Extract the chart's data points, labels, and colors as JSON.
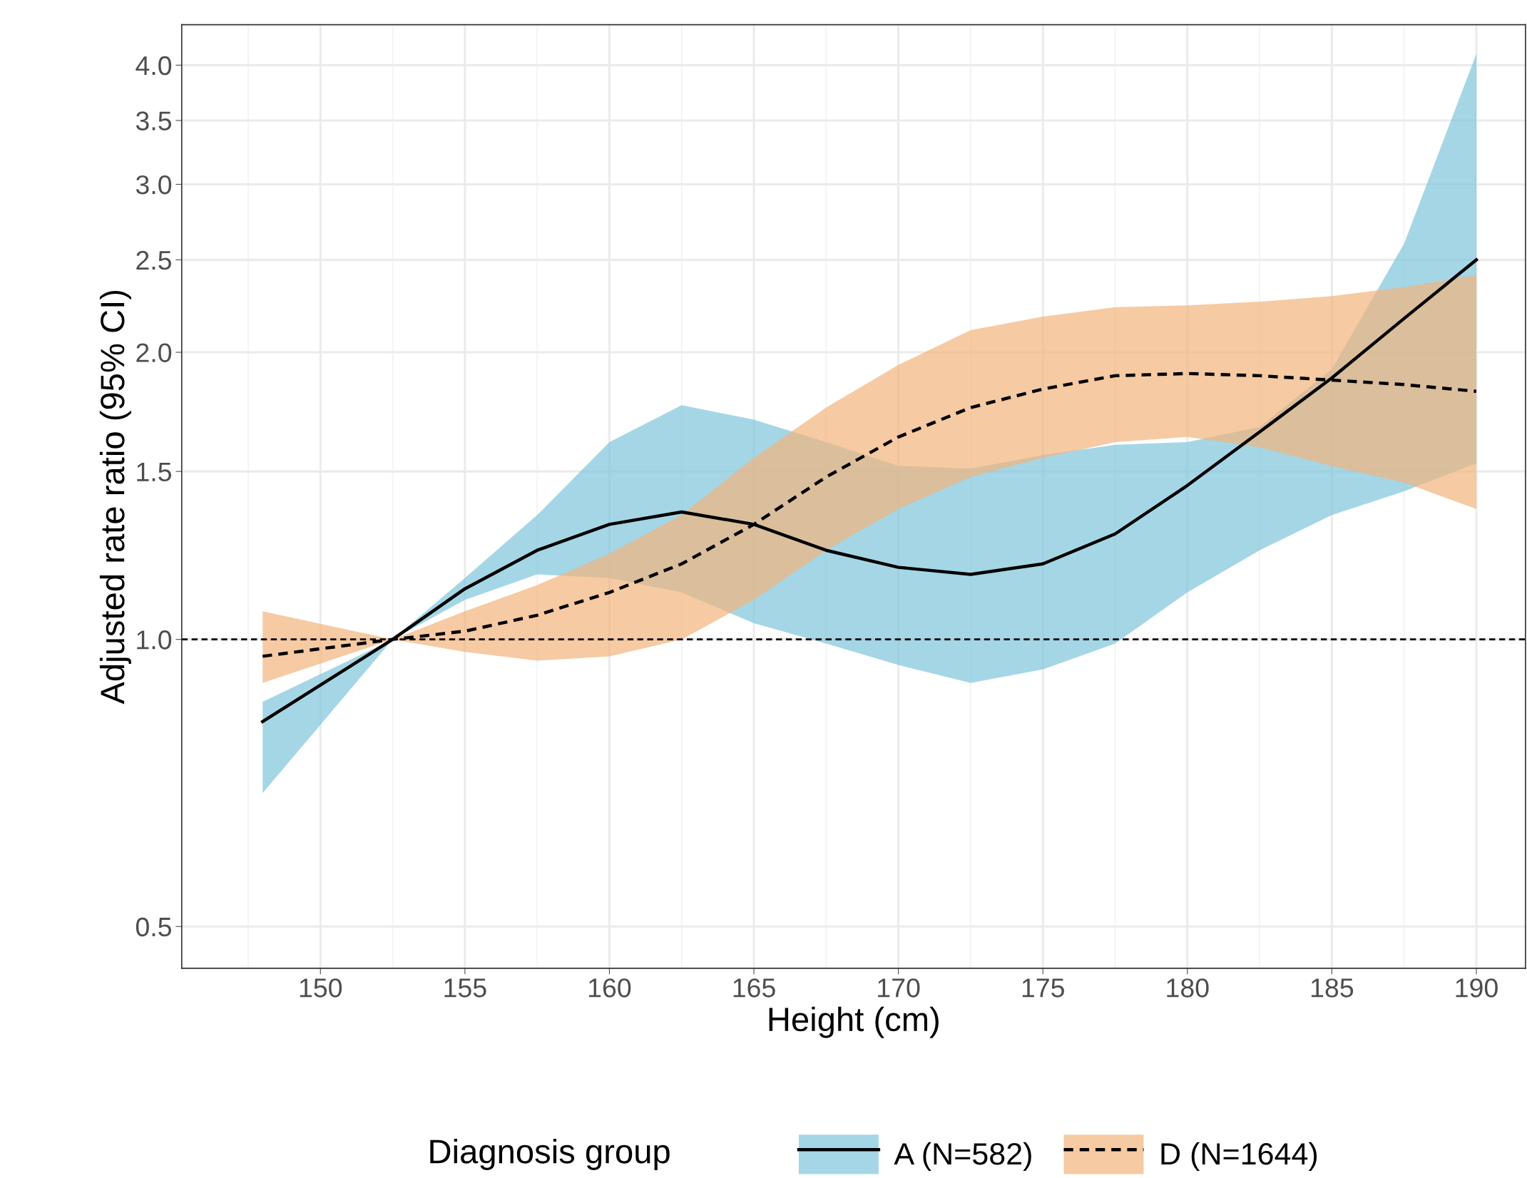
{
  "chart_data": {
    "type": "line",
    "xlabel": "Height (cm)",
    "ylabel": "Adjusted rate ratio (95% CI)",
    "legend_title": "Diagnosis group",
    "log": "y",
    "grid": true,
    "legend": "bottom",
    "marker": "none",
    "colors": [
      "#7fc4dc",
      "#f2b47a"
    ],
    "x": [
      148,
      152.5,
      155,
      157.5,
      160,
      162.5,
      165,
      167.5,
      170,
      172.5,
      175,
      177.5,
      180,
      182.5,
      185,
      187.5,
      190
    ],
    "series": [
      {
        "name": "A (N=582)",
        "color": "#000000",
        "line_style": "solid",
        "values": [
          0.82,
          1.0,
          1.13,
          1.24,
          1.32,
          1.36,
          1.32,
          1.24,
          1.19,
          1.17,
          1.2,
          1.29,
          1.45,
          1.65,
          1.88,
          2.17,
          2.5
        ],
        "lower": [
          0.69,
          1.0,
          1.1,
          1.17,
          1.16,
          1.12,
          1.04,
          0.99,
          0.94,
          0.9,
          0.93,
          0.99,
          1.12,
          1.24,
          1.35,
          1.43,
          1.53
        ],
        "upper": [
          0.86,
          1.0,
          1.16,
          1.35,
          1.61,
          1.76,
          1.7,
          1.61,
          1.52,
          1.51,
          1.56,
          1.6,
          1.61,
          1.67,
          1.92,
          2.6,
          4.11
        ]
      },
      {
        "name": "D (N=1644)",
        "color": "#000000",
        "line_style": "dashed",
        "values": [
          0.96,
          1.0,
          1.02,
          1.06,
          1.12,
          1.2,
          1.32,
          1.48,
          1.63,
          1.75,
          1.83,
          1.89,
          1.9,
          1.89,
          1.87,
          1.85,
          1.82
        ],
        "lower": [
          0.9,
          1.0,
          0.97,
          0.95,
          0.96,
          1.0,
          1.1,
          1.24,
          1.37,
          1.48,
          1.55,
          1.61,
          1.63,
          1.59,
          1.52,
          1.46,
          1.37
        ],
        "upper": [
          1.07,
          1.0,
          1.07,
          1.14,
          1.23,
          1.35,
          1.55,
          1.75,
          1.94,
          2.11,
          2.18,
          2.23,
          2.24,
          2.26,
          2.29,
          2.34,
          2.41
        ]
      }
    ],
    "ref_lines": [
      {
        "axis": "y",
        "value": 1.0,
        "line_style": "dashed",
        "color": "#000000"
      }
    ],
    "xlim": [
      145.2,
      191.7
    ],
    "xticks": [
      150,
      155,
      160,
      165,
      170,
      175,
      180,
      185,
      190
    ],
    "ylim": [
      0.452,
      4.41
    ],
    "yticks": [
      {
        "value": 0.5,
        "label": "0.5"
      },
      {
        "value": 1.0,
        "label": "1.0"
      },
      {
        "value": 1.5,
        "label": "1.5"
      },
      {
        "value": 2.0,
        "label": "2.0"
      },
      {
        "value": 2.5,
        "label": "2.5"
      },
      {
        "value": 3.0,
        "label": "3.0"
      },
      {
        "value": 3.5,
        "label": "3.5"
      },
      {
        "value": 4.0,
        "label": "4.0"
      }
    ]
  }
}
